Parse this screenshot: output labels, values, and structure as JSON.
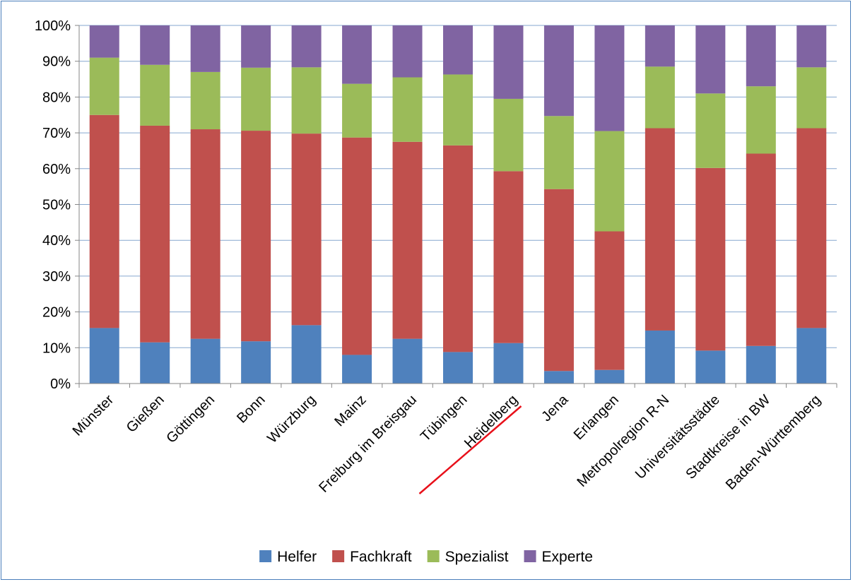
{
  "chart_data": {
    "type": "bar",
    "stacked": true,
    "categories": [
      "Münster",
      "Gießen",
      "Göttingen",
      "Bonn",
      "Würzburg",
      "Mainz",
      "Freiburg im Breisgau",
      "Tübingen",
      "Heidelberg",
      "Jena",
      "Erlangen",
      "Metropolregion R-N",
      "Universitätsstädte",
      "Stadtkreise in BW",
      "Baden-Württemberg"
    ],
    "highlighted_category": "Heidelberg",
    "series": [
      {
        "name": "Helfer",
        "color": "#4f81bd",
        "values": [
          15.5,
          11.5,
          12.5,
          11.8,
          16.3,
          8.0,
          12.5,
          8.8,
          11.3,
          3.5,
          3.8,
          14.8,
          9.2,
          10.5,
          15.5
        ]
      },
      {
        "name": "Fachkraft",
        "color": "#c0504d",
        "values": [
          59.5,
          60.5,
          58.5,
          58.8,
          53.5,
          60.7,
          55.0,
          57.7,
          48.0,
          50.8,
          38.7,
          56.5,
          51.0,
          53.7,
          55.8
        ]
      },
      {
        "name": "Spezialist",
        "color": "#9bbb59",
        "values": [
          16.0,
          17.0,
          16.0,
          17.6,
          18.5,
          15.0,
          18.0,
          19.8,
          20.2,
          20.4,
          28.0,
          17.2,
          20.8,
          18.8,
          17.0
        ]
      },
      {
        "name": "Experte",
        "color": "#8064a2",
        "values": [
          9.0,
          11.0,
          13.0,
          11.8,
          11.7,
          16.3,
          14.5,
          13.7,
          20.5,
          25.3,
          29.5,
          11.5,
          19.0,
          17.0,
          11.7
        ]
      }
    ],
    "y_ticks": [
      "0%",
      "10%",
      "20%",
      "30%",
      "40%",
      "50%",
      "60%",
      "70%",
      "80%",
      "90%",
      "100%"
    ],
    "ylim": [
      0,
      100
    ],
    "grid": true,
    "legend_position": "bottom"
  }
}
